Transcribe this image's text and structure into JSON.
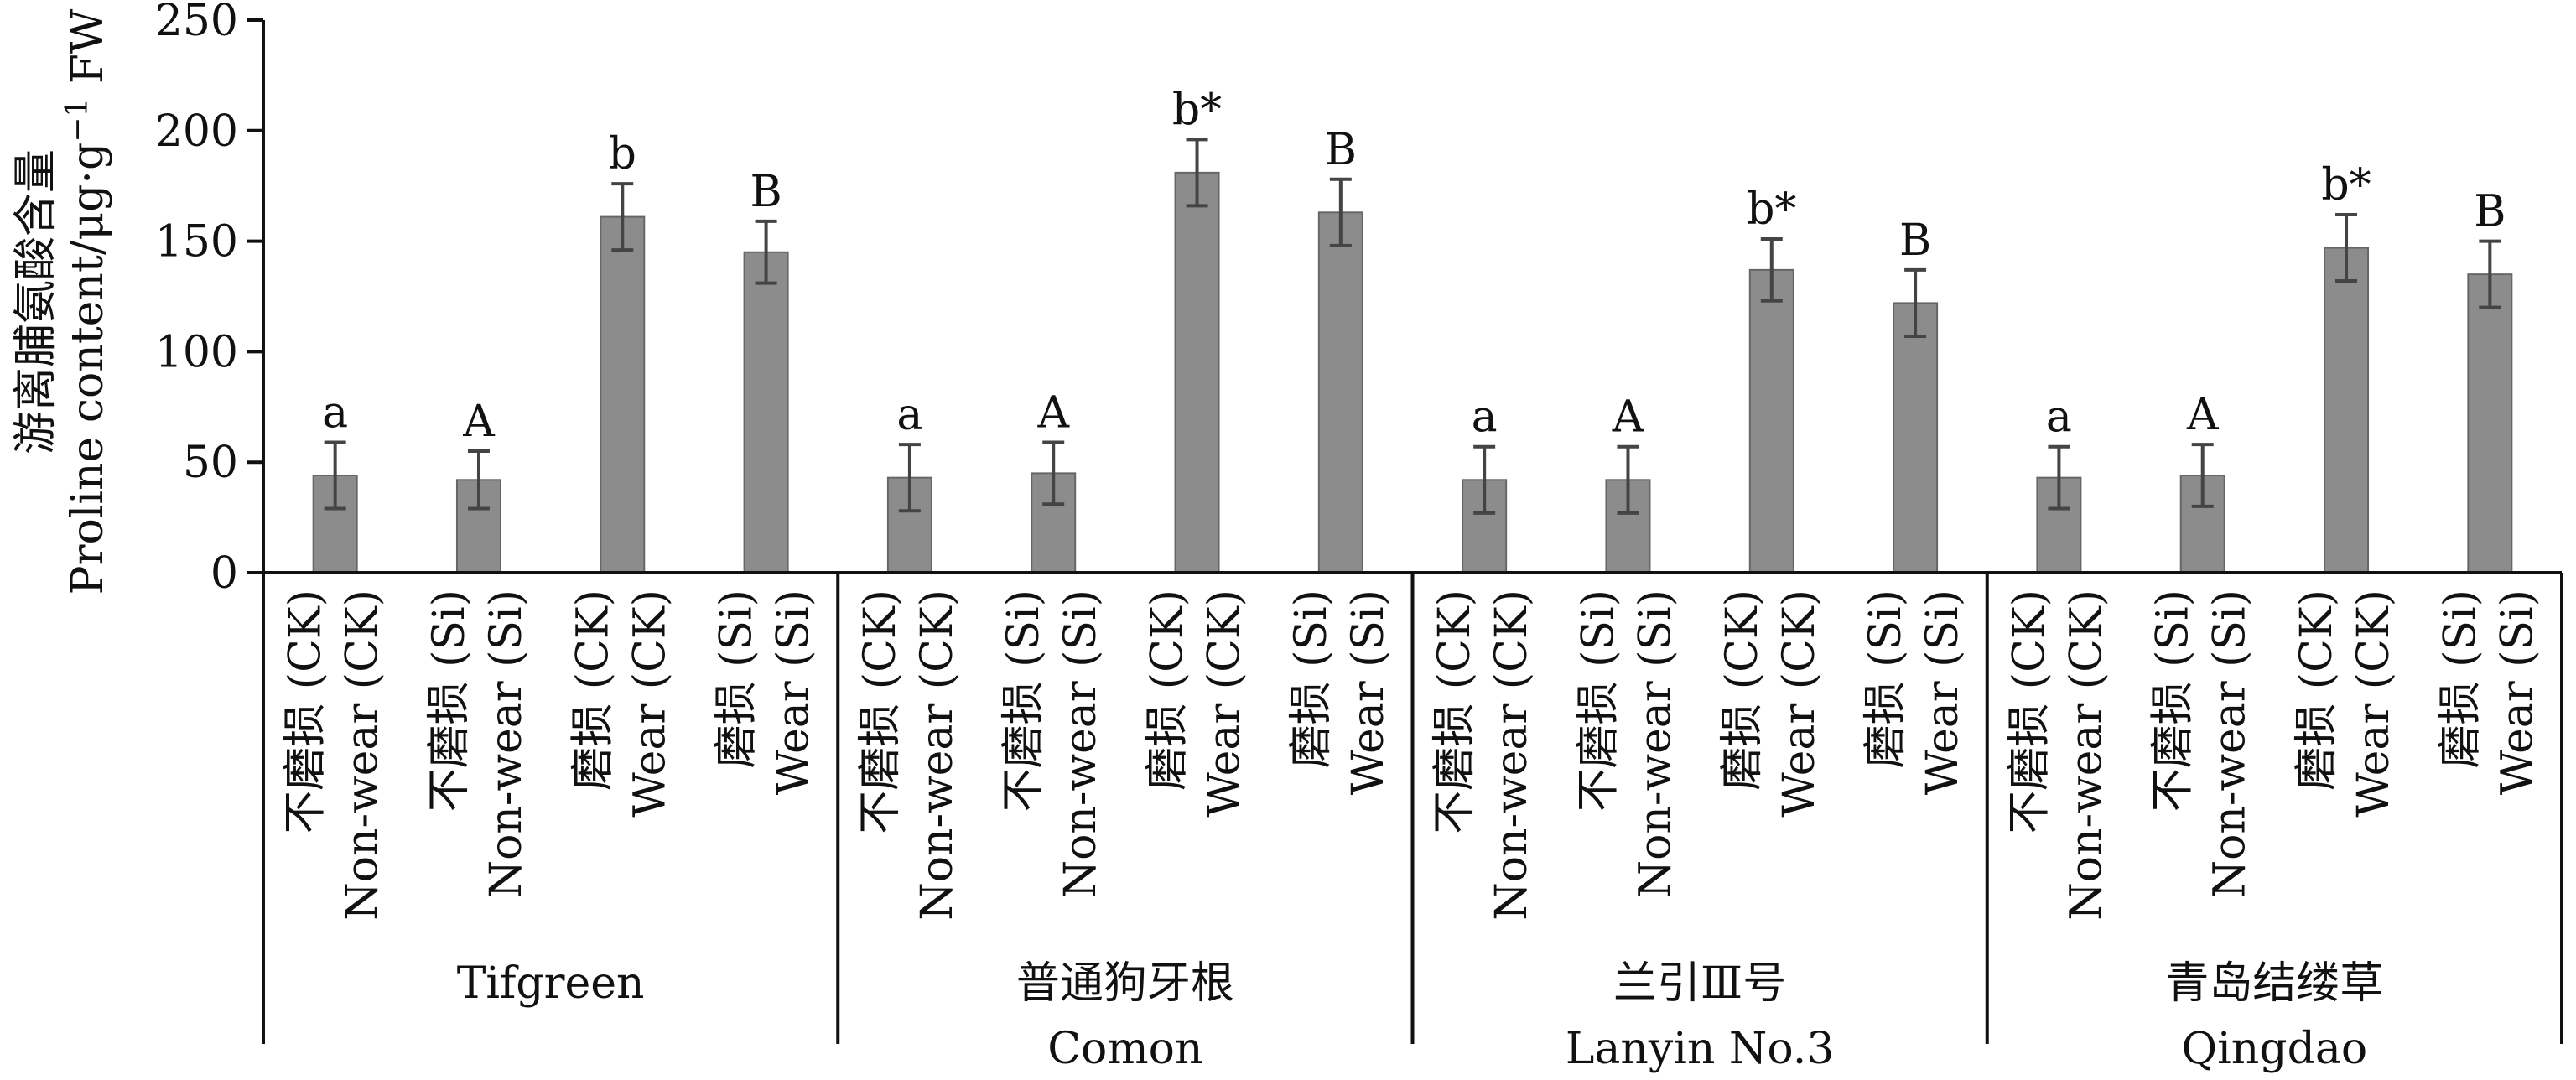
{
  "chart_data": {
    "type": "bar",
    "ylabel_cn": "游离脯氨酸含量",
    "ylabel_en_prefix": "Proline content/μg·g",
    "ylabel_en_sup": "−1",
    "ylabel_en_suffix": " FW",
    "ylim": [
      0,
      250
    ],
    "yticks": [
      0,
      50,
      100,
      150,
      200,
      250
    ],
    "treatment_labels": [
      {
        "cn": "不磨损 (CK)",
        "en": "Non-wear (CK)"
      },
      {
        "cn": "不磨损 (Si)",
        "en": "Non-wear (Si)"
      },
      {
        "cn": "磨损 (CK)",
        "en": "Wear (CK)"
      },
      {
        "cn": "磨损 (Si)",
        "en": "Wear (Si)"
      }
    ],
    "groups": [
      {
        "name_cn": "",
        "name_en": "Tifgreen",
        "values": [
          44,
          42,
          161,
          145
        ],
        "errors": [
          15,
          13,
          15,
          14
        ],
        "sig": [
          "a",
          "A",
          "b",
          "B"
        ]
      },
      {
        "name_cn": "普通狗牙根",
        "name_en": "Comon",
        "values": [
          43,
          45,
          181,
          163
        ],
        "errors": [
          15,
          14,
          15,
          15
        ],
        "sig": [
          "a",
          "A",
          "b*",
          "B"
        ]
      },
      {
        "name_cn": "兰引Ⅲ号",
        "name_en": "Lanyin No.3",
        "values": [
          42,
          42,
          137,
          122
        ],
        "errors": [
          15,
          15,
          14,
          15
        ],
        "sig": [
          "a",
          "A",
          "b*",
          "B"
        ]
      },
      {
        "name_cn": "青岛结缕草",
        "name_en": "Qingdao",
        "values": [
          43,
          44,
          147,
          135
        ],
        "errors": [
          14,
          14,
          15,
          15
        ],
        "sig": [
          "a",
          "A",
          "b*",
          "B"
        ]
      }
    ],
    "bar_color": "#8c8c8c",
    "grid": false,
    "legend": "none"
  }
}
